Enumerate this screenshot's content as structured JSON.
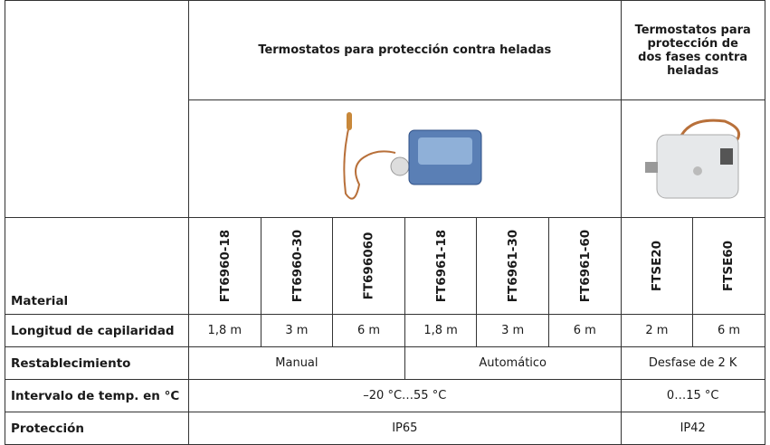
{
  "table": {
    "row_label_header": "Material",
    "group_titles": [
      "Termostatos para protección contra heladas",
      "Termostatos para protección de dos fases contra heladas"
    ],
    "models": [
      "FT6960-18",
      "FT6960-30",
      "FT696060",
      "FT6961-18",
      "FT6961-30",
      "FT6961-60",
      "FTSE20",
      "FTSE60"
    ],
    "rows": [
      {
        "label": "Longitud de capilaridad",
        "cells": [
          "1,8 m",
          "3 m",
          "6 m",
          "1,8 m",
          "3 m",
          "6 m",
          "2 m",
          "6 m"
        ]
      },
      {
        "label": "Restablecimiento",
        "cells": [
          "Manual",
          "Automático",
          "Desfase de 2 K"
        ]
      },
      {
        "label": "Intervalo de temp. en °C",
        "cells": [
          "–20 °C…55 °C",
          "0…15 °C"
        ]
      },
      {
        "label": "Protección",
        "cells": [
          "IP65",
          "IP42"
        ]
      }
    ]
  }
}
